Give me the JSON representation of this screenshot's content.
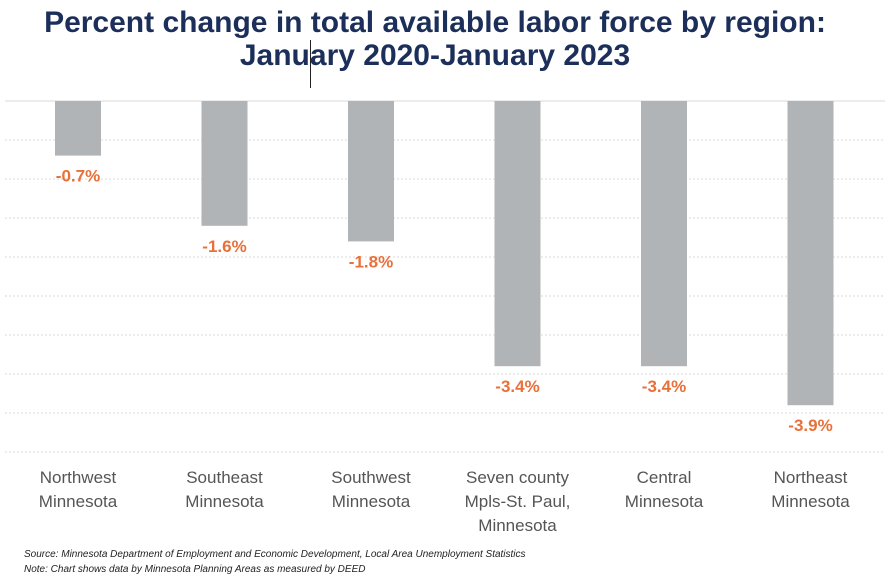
{
  "chart_data": {
    "type": "bar",
    "title_lines": [
      "Percent change in total available labor force by region:",
      "January 2020-January 2023"
    ],
    "categories": [
      [
        "Northwest",
        "Minnesota"
      ],
      [
        "Southeast",
        "Minnesota"
      ],
      [
        "Southwest",
        "Minnesota"
      ],
      [
        "Seven county",
        "Mpls-St. Paul,",
        "Minnesota"
      ],
      [
        "Central",
        "Minnesota"
      ],
      [
        "Northeast",
        "Minnesota"
      ]
    ],
    "values": [
      -0.7,
      -1.6,
      -1.8,
      -3.4,
      -3.4,
      -3.9
    ],
    "data_labels": [
      "-0.7%",
      "-1.6%",
      "-1.8%",
      "-3.4%",
      "-3.4%",
      "-3.9%"
    ],
    "ylim": [
      -4.5,
      0
    ],
    "gridline_step": 0.5,
    "xlabel": "",
    "ylabel": "",
    "legend": "none",
    "colors": {
      "bar": "#b1b4b6",
      "label": "#e8703a",
      "title": "#1b2f5a",
      "axis_text": "#555555",
      "grid": "#d9d9d9"
    }
  },
  "footnotes": {
    "source": "Source: Minnesota Department of Employment and Economic Development, Local Area Unemployment Statistics",
    "note": "Note: Chart shows data by Minnesota Planning Areas as measured by DEED"
  }
}
